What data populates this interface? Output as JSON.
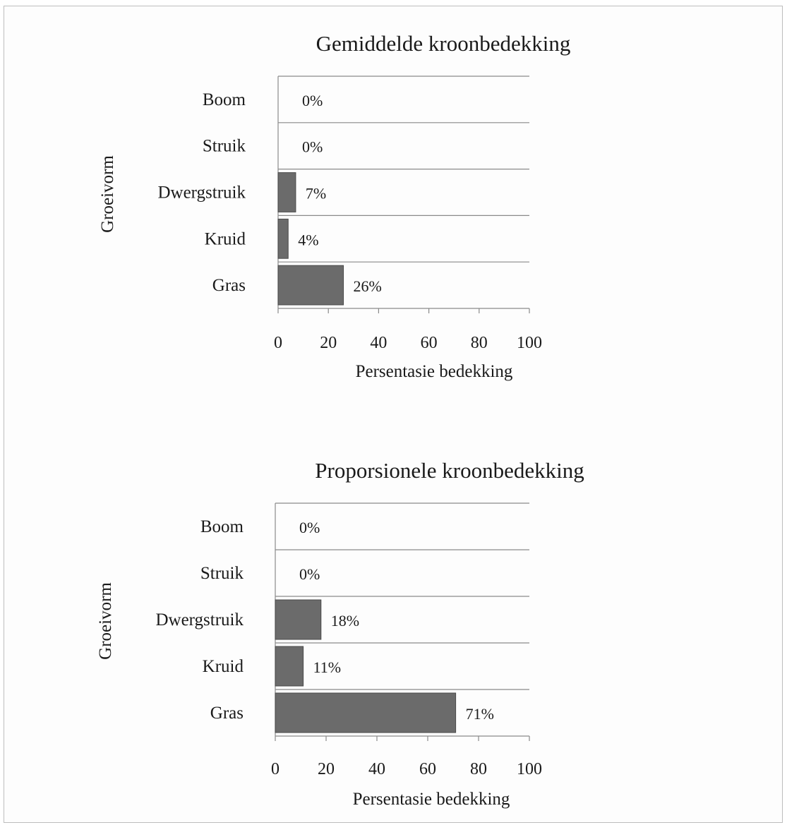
{
  "colors": {
    "bar": "#6b6b6b",
    "bar_edge": "#4a4a4a",
    "grid": "#8a8a8a",
    "frame": "#bdbdbd"
  },
  "chart_data": [
    {
      "type": "bar",
      "orientation": "horizontal",
      "title": "Gemiddelde kroonbedekking",
      "xlabel": "Persentasie bedekking",
      "ylabel": "Groeivorm",
      "categories": [
        "Boom",
        "Struik",
        "Dwergstruik",
        "Kruid",
        "Gras"
      ],
      "values": [
        0,
        0,
        7,
        4,
        26
      ],
      "data_labels": [
        "0%",
        "0%",
        "7%",
        "4%",
        "26%"
      ],
      "xlim": [
        0,
        100
      ],
      "xticks": [
        0,
        20,
        40,
        60,
        80,
        100
      ],
      "grid": "horizontal",
      "legend": "none"
    },
    {
      "type": "bar",
      "orientation": "horizontal",
      "title": "Proporsionele kroonbedekking",
      "xlabel": "Persentasie bedekking",
      "ylabel": "Groeivorm",
      "categories": [
        "Boom",
        "Struik",
        "Dwergstruik",
        "Kruid",
        "Gras"
      ],
      "values": [
        0,
        0,
        18,
        11,
        71
      ],
      "data_labels": [
        "0%",
        "0%",
        "18%",
        "11%",
        "71%"
      ],
      "xlim": [
        0,
        100
      ],
      "xticks": [
        0,
        20,
        40,
        60,
        80,
        100
      ],
      "grid": "horizontal",
      "legend": "none"
    }
  ]
}
